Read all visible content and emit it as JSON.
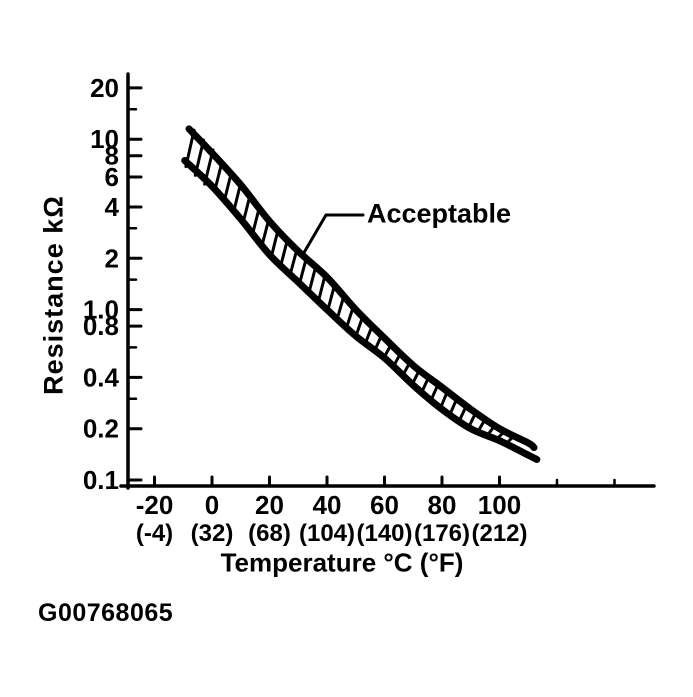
{
  "figure": {
    "code": "G00768065",
    "background_color": "#ffffff",
    "ink_color": "#000000"
  },
  "chart_data": {
    "type": "area",
    "title": "",
    "xlabel": "Temperature °C (°F)",
    "ylabel": "Resistance kΩ",
    "grid": "off",
    "legend": "none",
    "annotation": {
      "label": "Acceptable",
      "points_to": "hatched acceptable band"
    },
    "band_style": "hatched",
    "x_axis": {
      "scale": "linear",
      "unit": "°C (°F)",
      "range_c": [
        -29,
        154
      ],
      "ticks": [
        {
          "celsius": "-20",
          "fahrenheit": "(-4)",
          "value": -20
        },
        {
          "celsius": "0",
          "fahrenheit": "(32)",
          "value": 0
        },
        {
          "celsius": "20",
          "fahrenheit": "(68)",
          "value": 20
        },
        {
          "celsius": "40",
          "fahrenheit": "(104)",
          "value": 40
        },
        {
          "celsius": "60",
          "fahrenheit": "(140)",
          "value": 60
        },
        {
          "celsius": "80",
          "fahrenheit": "(176)",
          "value": 80
        },
        {
          "celsius": "100",
          "fahrenheit": "(212)",
          "value": 100
        }
      ],
      "unlabeled_tick_values": [
        120,
        140
      ]
    },
    "y_axis": {
      "scale": "log",
      "unit": "kΩ",
      "range": [
        0.1,
        26
      ],
      "ticks": [
        {
          "label": "20",
          "value": 20
        },
        {
          "label": "10",
          "value": 10
        },
        {
          "label": "8",
          "value": 8
        },
        {
          "label": "6",
          "value": 6
        },
        {
          "label": "4",
          "value": 4
        },
        {
          "label": "2",
          "value": 2
        },
        {
          "label": "1.0",
          "value": 1.0
        },
        {
          "label": "0.8",
          "value": 0.8
        },
        {
          "label": "0.4",
          "value": 0.4
        },
        {
          "label": "0.2",
          "value": 0.2
        },
        {
          "label": "0.1",
          "value": 0.1
        }
      ],
      "unlabeled_tick_values": [
        15,
        3,
        1.5,
        0.6,
        0.3
      ]
    },
    "series": [
      {
        "name": "upper-limit",
        "x_c": [
          -8,
          0,
          10,
          20,
          30,
          40,
          50,
          60,
          70,
          80,
          90,
          100,
          110,
          112
        ],
        "resistance_kohm": [
          11.5,
          8.3,
          5.4,
          3.3,
          2.2,
          1.55,
          1.0,
          0.68,
          0.47,
          0.35,
          0.26,
          0.2,
          0.165,
          0.155
        ]
      },
      {
        "name": "lower-limit",
        "x_c": [
          -9.5,
          0,
          10,
          20,
          30,
          40,
          50,
          60,
          70,
          80,
          90,
          100,
          110,
          113
        ],
        "resistance_kohm": [
          7.5,
          5.3,
          3.4,
          2.1,
          1.45,
          1.0,
          0.7,
          0.52,
          0.36,
          0.26,
          0.2,
          0.17,
          0.14,
          0.132
        ]
      }
    ]
  }
}
